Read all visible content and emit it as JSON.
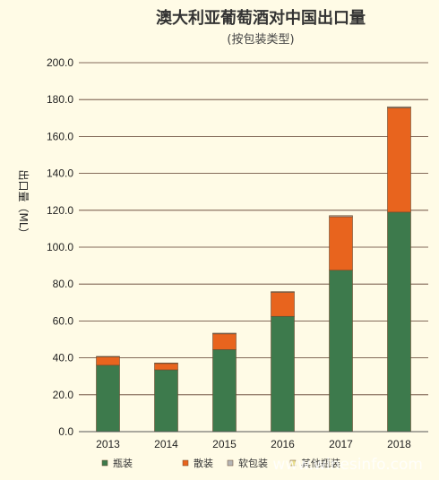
{
  "chart_data": {
    "type": "bar",
    "stacked": true,
    "title": "澳大利亚葡萄酒对中国出口量",
    "subtitle": "(按包装类型)",
    "ylabel": "出口量（ML）",
    "categories": [
      "2013",
      "2014",
      "2015",
      "2016",
      "2017",
      "2018"
    ],
    "ylim": [
      0,
      200
    ],
    "yticks": [
      "0.0",
      "20.0",
      "40.0",
      "60.0",
      "80.0",
      "100.0",
      "120.0",
      "140.0",
      "160.0",
      "180.0",
      "200.0"
    ],
    "grid": true,
    "legend_position": "bottom",
    "series": [
      {
        "name": "瓶装",
        "color": "#3d7a4c",
        "values": [
          36.0,
          33.5,
          44.5,
          62.5,
          87.5,
          119.0
        ]
      },
      {
        "name": "散装",
        "color": "#e8641e",
        "values": [
          4.5,
          3.5,
          8.5,
          13.0,
          29.0,
          56.5
        ]
      },
      {
        "name": "软包装",
        "color": "#b5b5b5",
        "values": [
          0.3,
          0.2,
          0.4,
          0.4,
          0.6,
          0.6
        ]
      },
      {
        "name": "其他瓶装",
        "color": "#eadf8c",
        "values": [
          0.0,
          0.0,
          0.0,
          0.0,
          0.0,
          0.0
        ]
      }
    ]
  },
  "watermark": {
    "text": "www.winesinfo.com"
  }
}
